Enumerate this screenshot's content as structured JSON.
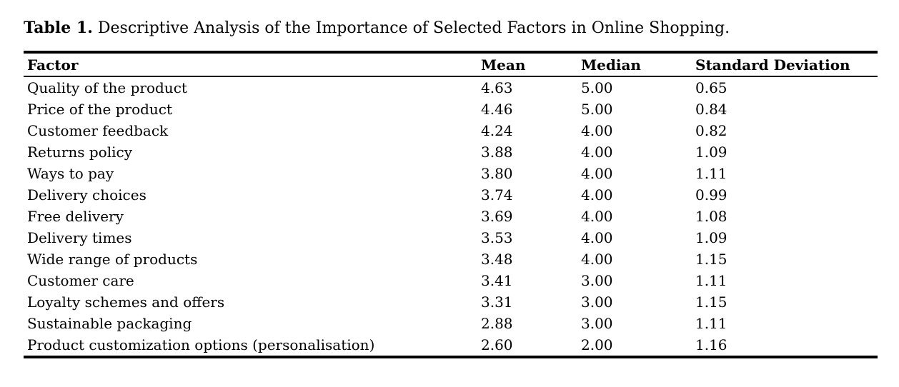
{
  "caption": {
    "label": "Table 1.",
    "text": " Descriptive Analysis of the Importance of Selected Factors in Online Shopping."
  },
  "colors": {
    "text": "#000000",
    "background": "#ffffff",
    "rule": "#000000"
  },
  "chart_data": {
    "type": "table",
    "title": "Table 1. Descriptive Analysis of the Importance of Selected Factors in Online Shopping.",
    "columns": [
      "Factor",
      "Mean",
      "Median",
      "Standard Deviation"
    ],
    "rows": [
      [
        "Quality of the product",
        "4.63",
        "5.00",
        "0.65"
      ],
      [
        "Price of the product",
        "4.46",
        "5.00",
        "0.84"
      ],
      [
        "Customer feedback",
        "4.24",
        "4.00",
        "0.82"
      ],
      [
        "Returns policy",
        "3.88",
        "4.00",
        "1.09"
      ],
      [
        "Ways to pay",
        "3.80",
        "4.00",
        "1.11"
      ],
      [
        "Delivery choices",
        "3.74",
        "4.00",
        "0.99"
      ],
      [
        "Free delivery",
        "3.69",
        "4.00",
        "1.08"
      ],
      [
        "Delivery times",
        "3.53",
        "4.00",
        "1.09"
      ],
      [
        "Wide range of products",
        "3.48",
        "4.00",
        "1.15"
      ],
      [
        "Customer care",
        "3.41",
        "3.00",
        "1.11"
      ],
      [
        "Loyalty schemes and offers",
        "3.31",
        "3.00",
        "1.15"
      ],
      [
        "Sustainable packaging",
        "2.88",
        "3.00",
        "1.11"
      ],
      [
        "Product customization options (personalisation)",
        "2.60",
        "2.00",
        "1.16"
      ]
    ]
  }
}
